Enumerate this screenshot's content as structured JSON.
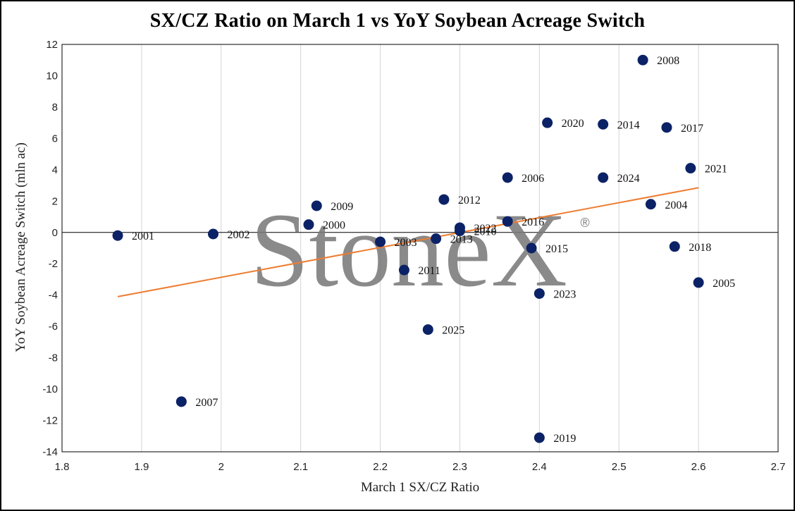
{
  "chart_data": {
    "type": "scatter",
    "title": "SX/CZ Ratio on March 1 vs YoY Soybean Acreage Switch",
    "xlabel": "March 1 SX/CZ Ratio",
    "ylabel": "YoY Soybean Acreage Switch (mln ac)",
    "xlim": [
      1.8,
      2.7
    ],
    "ylim": [
      -14,
      12
    ],
    "xticks": [
      1.8,
      1.9,
      2,
      2.1,
      2.2,
      2.3,
      2.4,
      2.5,
      2.6,
      2.7
    ],
    "xtick_labels": [
      "1.8",
      "1.9",
      "2",
      "2.1",
      "2.2",
      "2.3",
      "2.4",
      "2.5",
      "2.6",
      "2.7"
    ],
    "yticks": [
      12,
      10,
      8,
      6,
      4,
      2,
      0,
      -2,
      -4,
      -6,
      -8,
      -10,
      -12,
      -14
    ],
    "grid": "vertical",
    "point_color": "#0b2266",
    "trendline_color": "#ed7d31",
    "points": [
      {
        "label": "2000",
        "x": 2.11,
        "y": 0.5
      },
      {
        "label": "2001",
        "x": 1.87,
        "y": -0.2
      },
      {
        "label": "2002",
        "x": 1.99,
        "y": -0.1
      },
      {
        "label": "2003",
        "x": 2.2,
        "y": -0.6
      },
      {
        "label": "2004",
        "x": 2.54,
        "y": 1.8
      },
      {
        "label": "2005",
        "x": 2.6,
        "y": -3.2
      },
      {
        "label": "2006",
        "x": 2.36,
        "y": 3.5
      },
      {
        "label": "2007",
        "x": 1.95,
        "y": -10.8
      },
      {
        "label": "2008",
        "x": 2.53,
        "y": 11.0
      },
      {
        "label": "2009",
        "x": 2.12,
        "y": 1.7
      },
      {
        "label": "2010",
        "x": 2.3,
        "y": 0.1
      },
      {
        "label": "2011",
        "x": 2.23,
        "y": -2.4
      },
      {
        "label": "2012",
        "x": 2.28,
        "y": 2.1
      },
      {
        "label": "2013",
        "x": 2.27,
        "y": -0.4
      },
      {
        "label": "2014",
        "x": 2.48,
        "y": 6.9
      },
      {
        "label": "2015",
        "x": 2.39,
        "y": -1.0
      },
      {
        "label": "2016",
        "x": 2.36,
        "y": 0.7
      },
      {
        "label": "2017",
        "x": 2.56,
        "y": 6.7
      },
      {
        "label": "2018",
        "x": 2.57,
        "y": -0.9
      },
      {
        "label": "2019",
        "x": 2.4,
        "y": -13.1
      },
      {
        "label": "2020",
        "x": 2.41,
        "y": 7.0
      },
      {
        "label": "2021",
        "x": 2.59,
        "y": 4.1
      },
      {
        "label": "2022",
        "x": 2.3,
        "y": 0.3
      },
      {
        "label": "2023",
        "x": 2.4,
        "y": -3.9
      },
      {
        "label": "2024",
        "x": 2.48,
        "y": 3.5
      },
      {
        "label": "2025",
        "x": 2.26,
        "y": -6.2
      }
    ],
    "trendline": {
      "x": [
        1.87,
        2.6
      ],
      "y": [
        -4.1,
        2.85
      ]
    }
  },
  "watermark": {
    "text": "StoneX",
    "mark": "®"
  }
}
